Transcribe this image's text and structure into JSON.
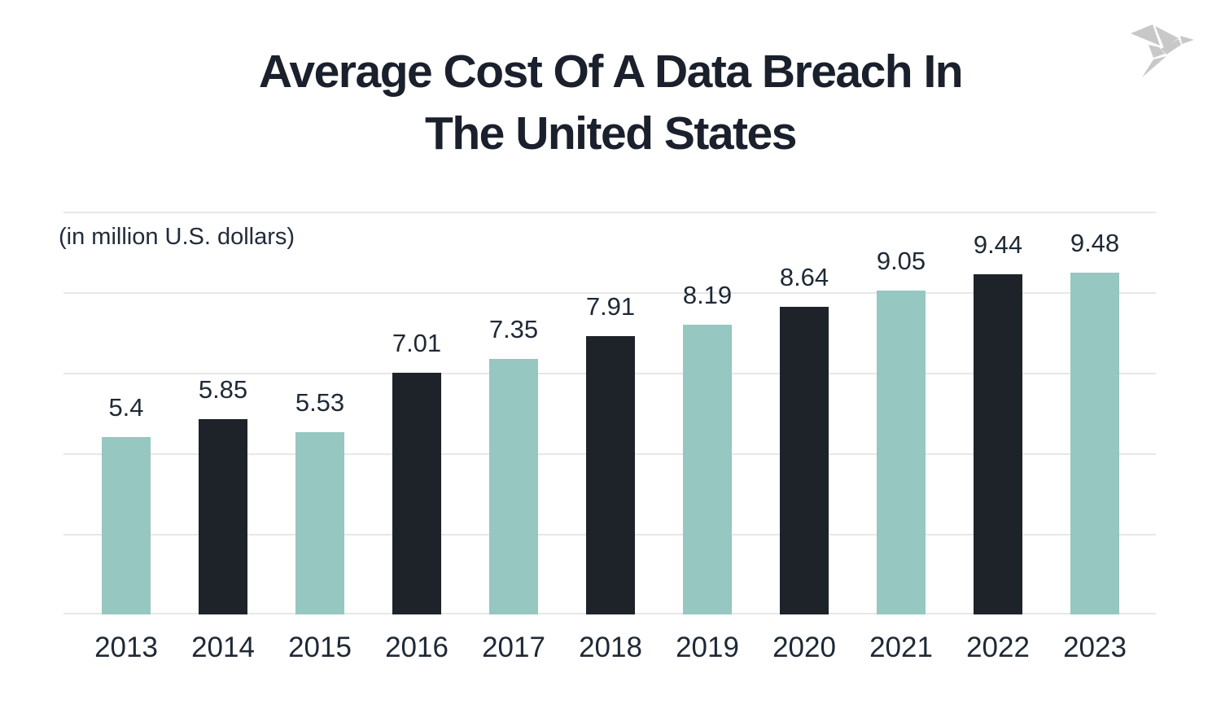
{
  "header": {
    "title_line1": "Average Cost Of A Data Breach In",
    "title_line2": "The United States",
    "logo": "origami-bird-logo"
  },
  "chart_data": {
    "type": "bar",
    "title": "Average Cost Of A Data Breach In The United States",
    "subtitle": "(in million U.S. dollars)",
    "categories": [
      "2013",
      "2014",
      "2015",
      "2016",
      "2017",
      "2018",
      "2019",
      "2020",
      "2021",
      "2022",
      "2023"
    ],
    "values": [
      5.4,
      5.85,
      5.53,
      7.01,
      7.35,
      7.91,
      8.19,
      8.64,
      9.05,
      9.44,
      9.48
    ],
    "value_labels": [
      "5.4",
      "5.85",
      "5.53",
      "7.01",
      "7.35",
      "7.91",
      "8.19",
      "8.64",
      "9.05",
      "9.44",
      "9.48"
    ],
    "xlabel": "",
    "ylabel": "(in million U.S. dollars)",
    "ylim": [
      1,
      11
    ],
    "gridlines": "horizontal, unlabeled, every 2 units",
    "legend_position": "none",
    "bar_colors_alternate": [
      "#96c7c1",
      "#1d2329"
    ]
  },
  "colors": {
    "teal_bar": "#96c7c1",
    "dark_bar": "#1d2329",
    "label_text": "#1e2936",
    "title_text": "#1a202c",
    "gridline": "#e7e7e7",
    "background": "#ffffff",
    "logo_gray": "#c8c8c8"
  }
}
